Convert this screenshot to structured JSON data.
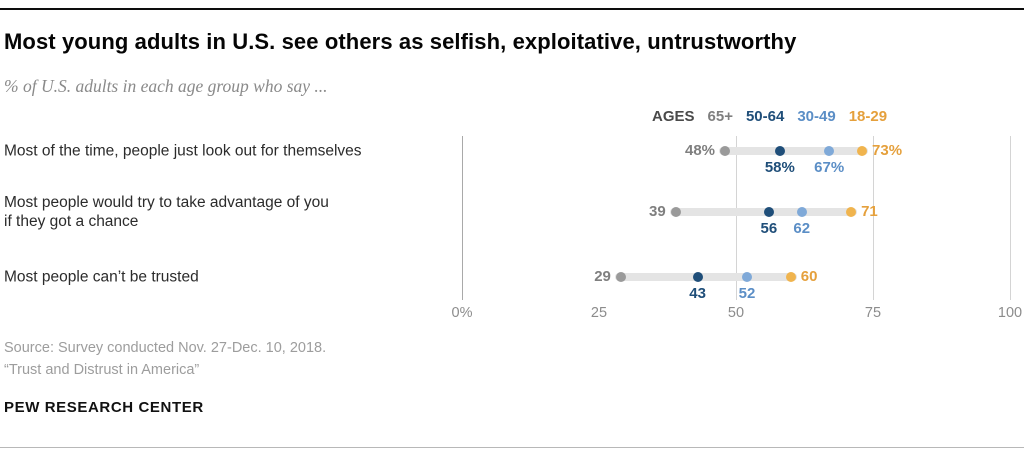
{
  "chart_data": {
    "type": "dot-plot",
    "title": "Most young adults in U.S. see others as selfish, exploitative, untrustworthy",
    "subtitle": "% of U.S. adults in each age group who say ...",
    "legend_label": "AGES",
    "legend_position": "top-right",
    "xlabel": "",
    "ylabel": "",
    "xlim": [
      0,
      100
    ],
    "x_ticks": [
      {
        "label": "0%",
        "value": 0
      },
      {
        "label": "25",
        "value": 25
      },
      {
        "label": "50",
        "value": 50
      },
      {
        "label": "75",
        "value": 75
      },
      {
        "label": "100",
        "value": 100
      }
    ],
    "gridlines_at": [
      0,
      50,
      75,
      100
    ],
    "categories": [
      "Most of the time, people just look out for themselves",
      "Most people would try to take advantage of you\nif they got a chance",
      "Most people can’t be trusted"
    ],
    "series": [
      {
        "name": "65+",
        "dot_color": "#9a9a9a",
        "label_color": "#7f7f7f",
        "label_position": "left",
        "values": [
          48,
          39,
          29
        ]
      },
      {
        "name": "50-64",
        "dot_color": "#1f4e79",
        "label_color": "#1f4e79",
        "label_position": "below",
        "values": [
          58,
          56,
          43
        ]
      },
      {
        "name": "30-49",
        "dot_color": "#7fa9d8",
        "label_color": "#5b8ec6",
        "label_position": "below",
        "values": [
          67,
          62,
          52
        ]
      },
      {
        "name": "18-29",
        "dot_color": "#f0b44e",
        "label_color": "#e5a03c",
        "label_position": "right",
        "values": [
          73,
          71,
          60
        ]
      }
    ],
    "value_labels": [
      [
        "48%",
        "58%",
        "67%",
        "73%"
      ],
      [
        "39",
        "56",
        "62",
        "71"
      ],
      [
        "29",
        "43",
        "52",
        "60"
      ]
    ],
    "connector_color": "#e4e4e4"
  },
  "footer": {
    "source_line1": "Source: Survey conducted Nov. 27-Dec. 10, 2018.",
    "source_line2": "“Trust and Distrust in America”",
    "brand": "PEW RESEARCH CENTER"
  }
}
